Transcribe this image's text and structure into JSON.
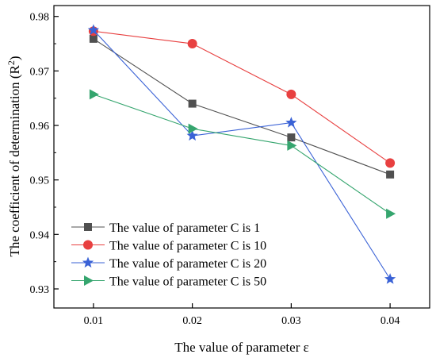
{
  "chart_data": {
    "type": "line",
    "title": "",
    "xlabel": "The value of parameter ε",
    "ylabel_main": "The coefficient of determination (R",
    "ylabel_sup": "2",
    "ylabel_end": ")",
    "x": [
      0.01,
      0.02,
      0.03,
      0.04
    ],
    "x_tick_labels": [
      "0.01",
      "0.02",
      "0.03",
      "0.04"
    ],
    "xlim": [
      0.006,
      0.044
    ],
    "ylim": [
      0.9265,
      0.982
    ],
    "y_ticks": [
      0.93,
      0.94,
      0.95,
      0.96,
      0.97,
      0.98
    ],
    "y_tick_labels": [
      "0.93",
      "0.94",
      "0.95",
      "0.96",
      "0.97",
      "0.98"
    ],
    "grid": false,
    "legend_position": "bottom-left",
    "series": [
      {
        "name": "The value of parameter C is 1",
        "values": [
          0.9759,
          0.964,
          0.9578,
          0.951
        ],
        "color": "#505050",
        "marker": "square"
      },
      {
        "name": "The value of parameter C is 10",
        "values": [
          0.9773,
          0.975,
          0.9657,
          0.9531
        ],
        "color": "#e84040",
        "marker": "circle"
      },
      {
        "name": "The value of parameter C is 20",
        "values": [
          0.9775,
          0.9581,
          0.9605,
          0.9318
        ],
        "color": "#3a62d6",
        "marker": "star"
      },
      {
        "name": "The value of parameter C is 50",
        "values": [
          0.9657,
          0.9594,
          0.9563,
          0.9438
        ],
        "color": "#35a56e",
        "marker": "triangle-right"
      }
    ]
  }
}
